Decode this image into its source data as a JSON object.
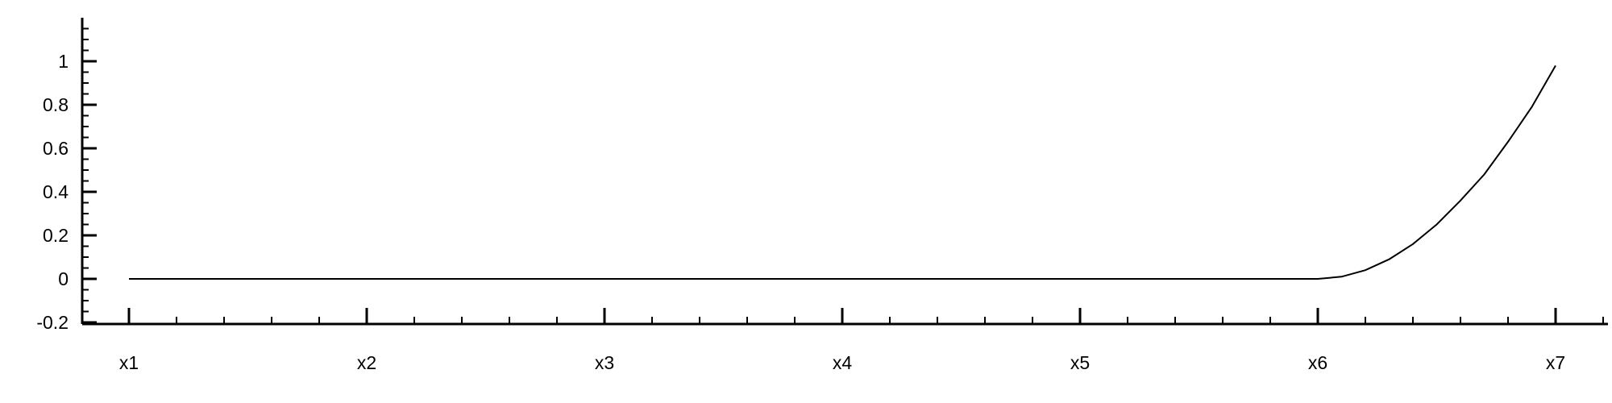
{
  "chart_data": {
    "type": "line",
    "x_tick_labels": [
      "x1",
      "x2",
      "x3",
      "x4",
      "x5",
      "x6",
      "x7"
    ],
    "y_tick_labels": [
      "-0.2",
      "0",
      "0.2",
      "0.4",
      "0.6",
      "0.8",
      "1"
    ],
    "y_ticks": [
      -0.2,
      0,
      0.2,
      0.4,
      0.6,
      0.8,
      1
    ],
    "ylim": [
      -0.2,
      1.2
    ],
    "xlim": [
      1,
      7.2
    ],
    "grid": false,
    "legend": "none",
    "line_color": "#000000",
    "series": [
      {
        "x": [
          1,
          1.5,
          2,
          2.5,
          3,
          3.5,
          4,
          4.5,
          5,
          5.5,
          6,
          6.1,
          6.2,
          6.3,
          6.4,
          6.5,
          6.6,
          6.7,
          6.8,
          6.9,
          7
        ],
        "y": [
          0,
          0,
          0,
          0,
          0,
          0,
          0,
          0,
          0,
          0,
          0,
          0.01,
          0.04,
          0.09,
          0.16,
          0.25,
          0.36,
          0.48,
          0.63,
          0.79,
          0.98
        ]
      }
    ]
  }
}
